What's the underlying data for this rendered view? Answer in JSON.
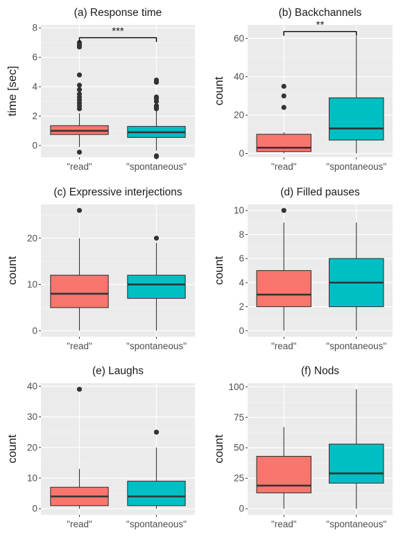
{
  "colors": {
    "read": "#F8766D",
    "spontaneous": "#00BFC4",
    "panel": "#EBEBEB",
    "grid_major": "#FFFFFF",
    "grid_minor": "#F5F5F5",
    "ink": "#333333"
  },
  "chart_data": [
    {
      "type": "box",
      "title": "(a) Response time",
      "ylabel": "time [sec]",
      "categories": [
        "\"read\"",
        "\"spontaneous\""
      ],
      "ylim": [
        -0.8,
        8.2
      ],
      "yticks": [
        0,
        2,
        4,
        6,
        8
      ],
      "grid": true,
      "boxes": [
        {
          "q1": 0.75,
          "median": 1.0,
          "q3": 1.35,
          "whisker_low": -0.1,
          "whisker_high": 2.2,
          "outliers": [
            -0.45,
            2.5,
            2.7,
            2.9,
            3.1,
            3.3,
            3.5,
            3.8,
            4.1,
            4.8,
            6.7,
            6.85,
            7.0
          ]
        },
        {
          "q1": 0.55,
          "median": 0.9,
          "q3": 1.3,
          "whisker_low": -0.35,
          "whisker_high": 2.35,
          "outliers": [
            -0.7,
            -0.75,
            2.5,
            2.6,
            2.7,
            3.0,
            3.2,
            3.3,
            4.3,
            4.45
          ]
        }
      ],
      "significance": "***"
    },
    {
      "type": "box",
      "title": "(b) Backchannels",
      "ylabel": "count",
      "categories": [
        "\"read\"",
        "\"spontaneous\""
      ],
      "ylim": [
        -2,
        67
      ],
      "yticks": [
        0,
        20,
        40,
        60
      ],
      "grid": true,
      "boxes": [
        {
          "q1": 1,
          "median": 3,
          "q3": 10,
          "whisker_low": 0,
          "whisker_high": 11,
          "outliers": [
            24,
            30,
            35
          ]
        },
        {
          "q1": 7,
          "median": 13,
          "q3": 29,
          "whisker_low": 0,
          "whisker_high": 61,
          "outliers": []
        }
      ],
      "significance": "**"
    },
    {
      "type": "box",
      "title": "(c) Expressive interjections",
      "ylabel": "count",
      "categories": [
        "\"read\"",
        "\"spontaneous\""
      ],
      "ylim": [
        -1.3,
        27.3
      ],
      "yticks": [
        0,
        10,
        20
      ],
      "grid": true,
      "boxes": [
        {
          "q1": 5,
          "median": 8,
          "q3": 12,
          "whisker_low": 0,
          "whisker_high": 20,
          "outliers": [
            26
          ]
        },
        {
          "q1": 7,
          "median": 10,
          "q3": 12,
          "whisker_low": 0,
          "whisker_high": 19,
          "outliers": [
            20
          ]
        }
      ],
      "significance": ""
    },
    {
      "type": "box",
      "title": "(d) Filled pauses",
      "ylabel": "count",
      "categories": [
        "\"read\"",
        "\"spontaneous\""
      ],
      "ylim": [
        -0.5,
        10.5
      ],
      "yticks": [
        0,
        2,
        4,
        6,
        8,
        10
      ],
      "grid": true,
      "boxes": [
        {
          "q1": 2,
          "median": 3,
          "q3": 5,
          "whisker_low": 0,
          "whisker_high": 9,
          "outliers": [
            10
          ]
        },
        {
          "q1": 2,
          "median": 4,
          "q3": 6,
          "whisker_low": 0,
          "whisker_high": 9,
          "outliers": []
        }
      ],
      "significance": ""
    },
    {
      "type": "box",
      "title": "(e) Laughs",
      "ylabel": "count",
      "categories": [
        "\"read\"",
        "\"spontaneous\""
      ],
      "ylim": [
        -2,
        41
      ],
      "yticks": [
        0,
        10,
        20,
        30,
        40
      ],
      "grid": true,
      "boxes": [
        {
          "q1": 1,
          "median": 4,
          "q3": 7,
          "whisker_low": 0,
          "whisker_high": 13,
          "outliers": [
            39
          ]
        },
        {
          "q1": 1,
          "median": 4,
          "q3": 9,
          "whisker_low": 0,
          "whisker_high": 20,
          "outliers": [
            25
          ]
        }
      ],
      "significance": ""
    },
    {
      "type": "box",
      "title": "(f) Nods",
      "ylabel": "count",
      "categories": [
        "\"read\"",
        "\"spontaneous\""
      ],
      "ylim": [
        -5,
        103
      ],
      "yticks": [
        0,
        25,
        50,
        75,
        100
      ],
      "grid": true,
      "boxes": [
        {
          "q1": 13,
          "median": 19,
          "q3": 43,
          "whisker_low": 0,
          "whisker_high": 67,
          "outliers": []
        },
        {
          "q1": 21,
          "median": 29,
          "q3": 53,
          "whisker_low": 0,
          "whisker_high": 98,
          "outliers": []
        }
      ],
      "significance": ""
    }
  ]
}
